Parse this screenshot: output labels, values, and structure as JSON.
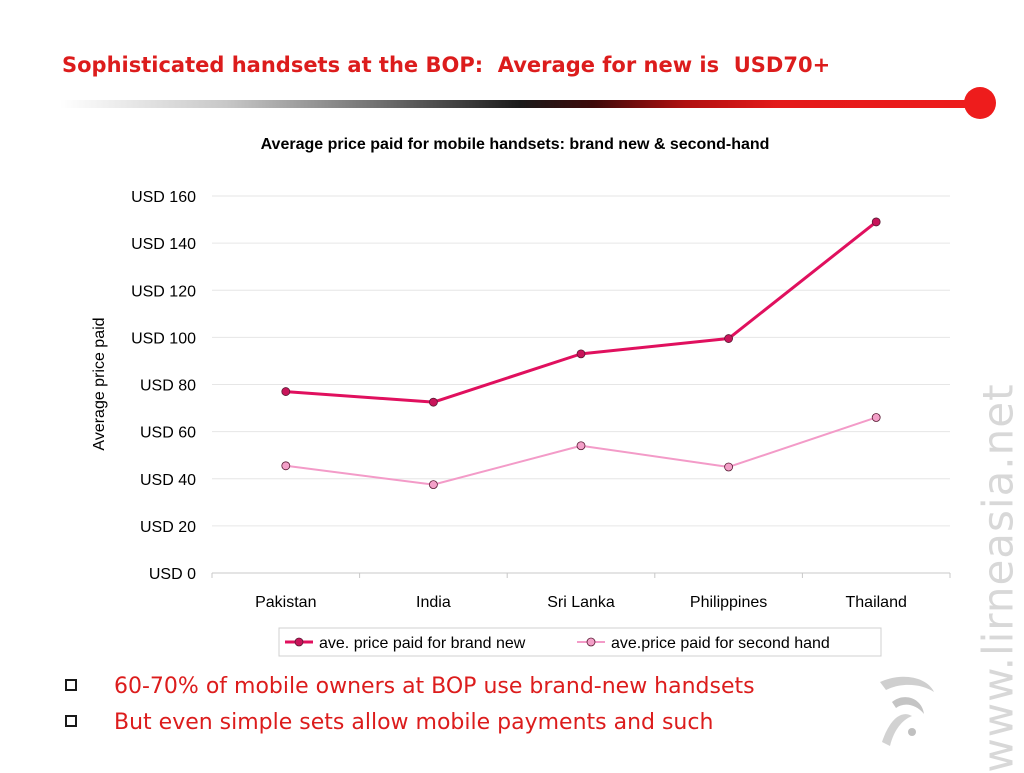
{
  "slide": {
    "title": "Sophisticated handsets at the BOP:  Average for new is  USD70+",
    "bullets": [
      "60-70% of mobile owners at BOP use brand-new handsets",
      "But even simple sets allow mobile payments and such"
    ],
    "watermark": "www.lirneasia.net",
    "accent_color": "#ee1c1c",
    "text_color": "#dc1c1c",
    "logo_icon": "lirneasia-logo-icon"
  },
  "chart_data": {
    "type": "line",
    "title": "Average price paid for mobile handsets: brand new & second-hand",
    "xlabel": "",
    "ylabel": "Average price paid",
    "categories": [
      "Pakistan",
      "India",
      "Sri Lanka",
      "Philippines",
      "Thailand"
    ],
    "ylim": [
      0,
      160
    ],
    "yticks": [
      "USD 0",
      "USD 20",
      "USD 40",
      "USD 60",
      "USD 80",
      "USD 100",
      "USD 120",
      "USD 140",
      "USD 160"
    ],
    "grid": true,
    "legend": "bottom",
    "series": [
      {
        "name": "ave. price paid for brand new",
        "values": [
          77,
          72.5,
          93,
          99.5,
          149
        ],
        "color": "#e0105e",
        "marker_fill": "#c8145a",
        "style": "thick"
      },
      {
        "name": "ave.price paid for second hand",
        "values": [
          45.5,
          37.5,
          54,
          45,
          66
        ],
        "color": "#f39bc8",
        "marker_fill": "#f3a0c8",
        "style": "thin"
      }
    ]
  }
}
